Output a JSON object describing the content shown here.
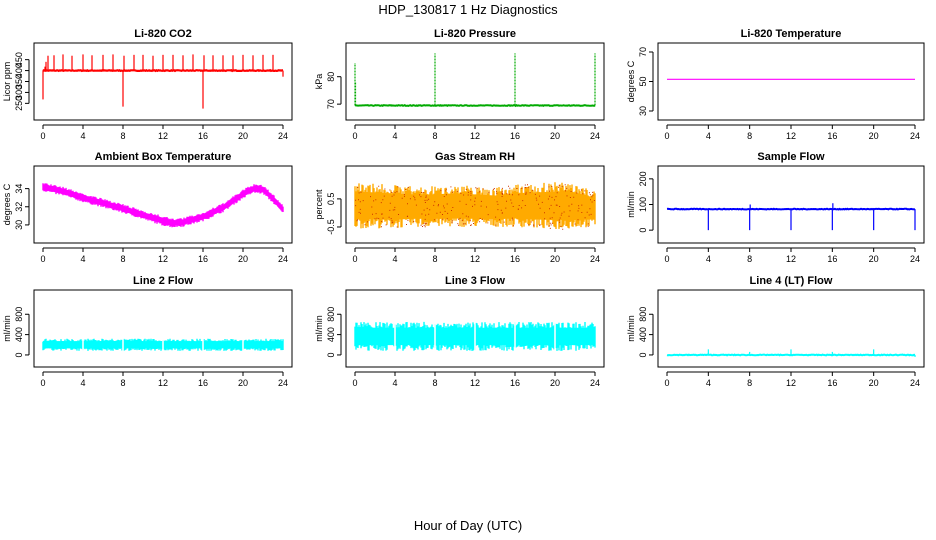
{
  "figure_title": "HDP_130817  1 Hz Diagnostics",
  "x_axis_title": "Hour of Day (UTC)",
  "chart_data": [
    {
      "type": "line",
      "title": "Li-820 CO2",
      "ylabel": "Licor ppm",
      "color": "#ff0000",
      "xlim": [
        0,
        24
      ],
      "ylim": [
        215,
        485
      ],
      "xticks": [
        0,
        4,
        8,
        12,
        16,
        20,
        24
      ],
      "yticks": [
        250,
        300,
        350,
        400,
        450
      ],
      "series": [
        {
          "baseline": 400,
          "x": [
            0,
            0.2,
            0.3,
            0.5,
            1.1,
            2.0,
            2.9,
            4.0,
            4.9,
            6.0,
            7.0,
            8.0,
            8.1,
            9.1,
            10.0,
            11.0,
            12.0,
            13.0,
            14.0,
            15.0,
            16.0,
            16.1,
            17.0,
            18.0,
            19.0,
            20.0,
            21.0,
            22.0,
            23.0,
            24.0
          ],
          "y": [
            268,
            418,
            440,
            468,
            470,
            474,
            468,
            474,
            470,
            472,
            474,
            235,
            468,
            472,
            472,
            468,
            472,
            472,
            470,
            474,
            226,
            470,
            470,
            470,
            470,
            472,
            470,
            472,
            472,
            372
          ]
        }
      ]
    },
    {
      "type": "line",
      "title": "Li-820 Pressure",
      "ylabel": "kPa",
      "color": "#00aa00",
      "xlim": [
        0,
        24
      ],
      "ylim": [
        67.5,
        89
      ],
      "xticks": [
        0,
        4,
        8,
        12,
        16,
        20,
        24
      ],
      "yticks": [
        70,
        80
      ],
      "series": [
        {
          "baseline": 69.5,
          "x": [
            0,
            0.05,
            8.0,
            16.0,
            24.0
          ],
          "y": [
            85,
            78,
            88.5,
            88.5,
            88.5
          ]
        }
      ]
    },
    {
      "type": "line",
      "title": "Li-820 Temperature",
      "ylabel": "degrees C",
      "color": "#ff00ff",
      "xlim": [
        0,
        24
      ],
      "ylim": [
        30,
        70
      ],
      "xticks": [
        0,
        4,
        8,
        12,
        16,
        20,
        24
      ],
      "yticks": [
        30,
        50,
        70
      ],
      "series": [
        {
          "x": [
            0,
            24
          ],
          "y": [
            51.5,
            51.5
          ]
        }
      ]
    },
    {
      "type": "area",
      "title": "Ambient Box Temperature",
      "ylabel": "degrees C",
      "color": "#ff00ff",
      "xlim": [
        0,
        24
      ],
      "ylim": [
        29,
        35.5
      ],
      "xticks": [
        0,
        4,
        8,
        12,
        16,
        20,
        24
      ],
      "yticks": [
        30,
        32,
        34
      ],
      "series": [
        {
          "x": [
            0,
            2,
            4,
            6,
            8,
            10,
            12,
            13,
            14,
            16,
            18,
            20,
            21,
            22,
            23,
            24
          ],
          "lower": [
            33.7,
            33.2,
            32.5,
            31.9,
            31.3,
            30.6,
            29.9,
            29.7,
            29.8,
            30.4,
            31.4,
            32.9,
            33.5,
            33.4,
            32.4,
            31.2
          ],
          "upper": [
            34.7,
            34.2,
            33.5,
            32.9,
            32.3,
            31.6,
            31.0,
            30.7,
            30.8,
            31.4,
            32.4,
            33.9,
            34.5,
            34.4,
            33.4,
            32.2
          ]
        }
      ]
    },
    {
      "type": "area",
      "title": "Gas Stream RH",
      "ylabel": "percent",
      "color": "#ffaa00",
      "xlim": [
        0,
        24
      ],
      "ylim": [
        -0.75,
        1.35
      ],
      "xticks": [
        0,
        4,
        8,
        12,
        16,
        20,
        24
      ],
      "yticks": [
        -0.5,
        0.5
      ],
      "series": [
        {
          "x": [
            0,
            2,
            4,
            6,
            8,
            10,
            12,
            14,
            16,
            18,
            20,
            22,
            24
          ],
          "lower": [
            -0.55,
            -0.55,
            -0.55,
            -0.5,
            -0.5,
            -0.5,
            -0.5,
            -0.5,
            -0.5,
            -0.55,
            -0.6,
            -0.55,
            -0.5
          ],
          "upper": [
            1.1,
            1.05,
            1.0,
            0.95,
            0.95,
            1.0,
            0.95,
            0.9,
            1.0,
            1.05,
            1.1,
            1.05,
            0.8
          ]
        }
      ]
    },
    {
      "type": "line",
      "title": "Sample Flow",
      "ylabel": "ml/min",
      "color": "#0000ff",
      "xlim": [
        0,
        24
      ],
      "ylim": [
        -15,
        215
      ],
      "xticks": [
        0,
        4,
        8,
        12,
        16,
        20,
        24
      ],
      "yticks": [
        0,
        100,
        200
      ],
      "series": [
        {
          "baseline": 82,
          "x": [
            4,
            8,
            8.05,
            12,
            16,
            16.05,
            20,
            24
          ],
          "y": [
            0,
            0,
            100,
            0,
            0,
            105,
            0,
            0
          ]
        }
      ]
    },
    {
      "type": "area",
      "title": "Line 2 Flow",
      "ylabel": "ml/min",
      "color": "#00ffff",
      "xlim": [
        0,
        24
      ],
      "ylim": [
        -60,
        1100
      ],
      "xticks": [
        0,
        4,
        8,
        12,
        16,
        20,
        24
      ],
      "yticks": [
        0,
        400,
        800
      ],
      "series": [
        {
          "x": [
            0,
            24
          ],
          "lower": [
            80,
            80
          ],
          "upper": [
            320,
            320
          ],
          "gaps": [
            4,
            8,
            12,
            16,
            20
          ]
        }
      ]
    },
    {
      "type": "area",
      "title": "Line 3 Flow",
      "ylabel": "ml/min",
      "color": "#00ffff",
      "xlim": [
        0,
        24
      ],
      "ylim": [
        -60,
        1100
      ],
      "xticks": [
        0,
        4,
        8,
        12,
        16,
        20,
        24
      ],
      "yticks": [
        0,
        400,
        800
      ],
      "series": [
        {
          "x": [
            0,
            24
          ],
          "lower": [
            80,
            80
          ],
          "upper": [
            650,
            650
          ],
          "gaps": [
            4,
            8,
            12,
            16,
            20
          ]
        }
      ]
    },
    {
      "type": "line",
      "title": "Line 4 (LT) Flow",
      "ylabel": "ml/min",
      "color": "#00ffff",
      "xlim": [
        0,
        24
      ],
      "ylim": [
        -60,
        1100
      ],
      "xticks": [
        0,
        4,
        8,
        12,
        16,
        20,
        24
      ],
      "yticks": [
        0,
        400,
        800
      ],
      "series": [
        {
          "baseline": 0,
          "x": [
            4,
            8,
            12,
            16,
            20,
            24
          ],
          "y": [
            110,
            60,
            110,
            60,
            110,
            -40
          ]
        }
      ]
    }
  ]
}
